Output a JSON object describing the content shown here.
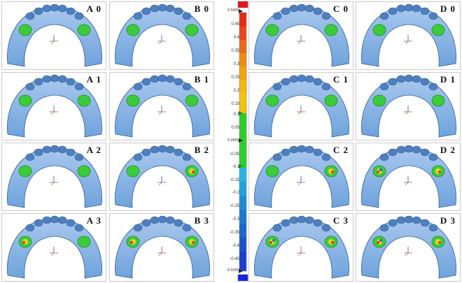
{
  "panels": [
    {
      "label": "A 0"
    },
    {
      "label": "B 0"
    },
    {
      "label": "C 0"
    },
    {
      "label": "D 0"
    },
    {
      "label": "A 1"
    },
    {
      "label": "B 1"
    },
    {
      "label": "C 1"
    },
    {
      "label": "D 1"
    },
    {
      "label": "A 2"
    },
    {
      "label": "B 2"
    },
    {
      "label": "C 2"
    },
    {
      "label": "D 2"
    },
    {
      "label": "A 3"
    },
    {
      "label": "B 3"
    },
    {
      "label": "C 3"
    },
    {
      "label": "D 3"
    }
  ],
  "scale": {
    "ticks": [
      "0.5000",
      "0.45",
      "0.4",
      "0.35",
      "0.3",
      "0.25",
      "0.2",
      "0.15",
      "0.1",
      "0.05",
      "0.0000",
      "-0.05",
      "-0.1",
      "-0.15",
      "-0.2",
      "-0.25",
      "-0.3",
      "-0.35",
      "-0.4",
      "-0.45",
      "-0.5000"
    ],
    "colors": {
      "over": "#e3161b",
      "high": "#e8561a",
      "mid_high": "#f2a10d",
      "tolerance": "#2ccf2a",
      "mid_low": "#1fa3df",
      "low": "#1a3fd0",
      "under": "#1022e8"
    }
  },
  "colors": {
    "model": "#6fa3dc",
    "model_dark": "#2f5f9a",
    "abutment": "#3ccc3a",
    "deviation_red": "#e03a1e",
    "deviation_yellow": "#e9d22a",
    "deviation_blue": "#2c66d6"
  }
}
